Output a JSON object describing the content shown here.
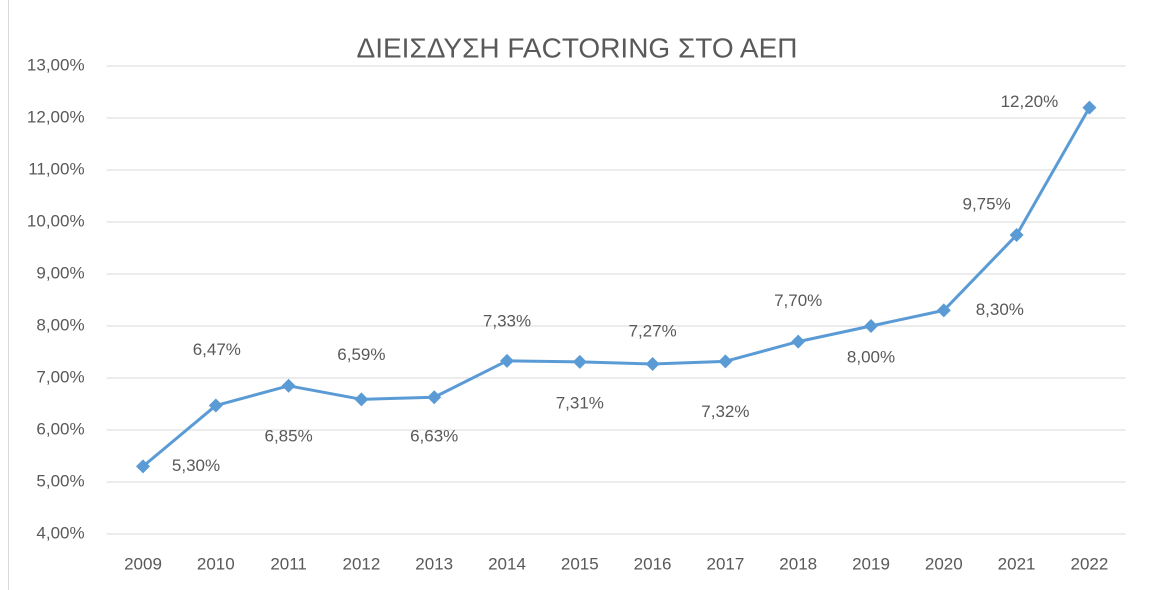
{
  "chart_data": {
    "type": "line",
    "title": "ΔΙΕΙΣΔΥΣΗ FACTORING ΣΤΟ ΑΕΠ",
    "categories": [
      "2009",
      "2010",
      "2011",
      "2012",
      "2013",
      "2014",
      "2015",
      "2016",
      "2017",
      "2018",
      "2019",
      "2020",
      "2021",
      "2022"
    ],
    "series": [
      {
        "name": "ΔΙΕΙΣΔΥΣΗ FACTORING ΣΤΟ ΑΕΠ",
        "color": "#5b9bd5",
        "values": [
          5.3,
          6.47,
          6.85,
          6.59,
          6.63,
          7.33,
          7.31,
          7.27,
          7.32,
          7.7,
          8.0,
          8.3,
          9.75,
          12.2
        ],
        "value_labels": [
          "5,30%",
          "6,47%",
          "6,85%",
          "6,59%",
          "6,63%",
          "7,33%",
          "7,31%",
          "7,27%",
          "7,32%",
          "7,70%",
          "8,00%",
          "8,30%",
          "9,75%",
          "12,20%"
        ]
      }
    ],
    "ylim": [
      4,
      13
    ],
    "yticks": [
      {
        "value": 4,
        "label": "4,00%"
      },
      {
        "value": 5,
        "label": "5,00%"
      },
      {
        "value": 6,
        "label": "6,00%"
      },
      {
        "value": 7,
        "label": "7,00%"
      },
      {
        "value": 8,
        "label": "8,00%"
      },
      {
        "value": 9,
        "label": "9,00%"
      },
      {
        "value": 10,
        "label": "10,00%"
      },
      {
        "value": 11,
        "label": "11,00%"
      },
      {
        "value": 12,
        "label": "12,00%"
      },
      {
        "value": 13,
        "label": "13,00%"
      }
    ],
    "grid": true
  }
}
